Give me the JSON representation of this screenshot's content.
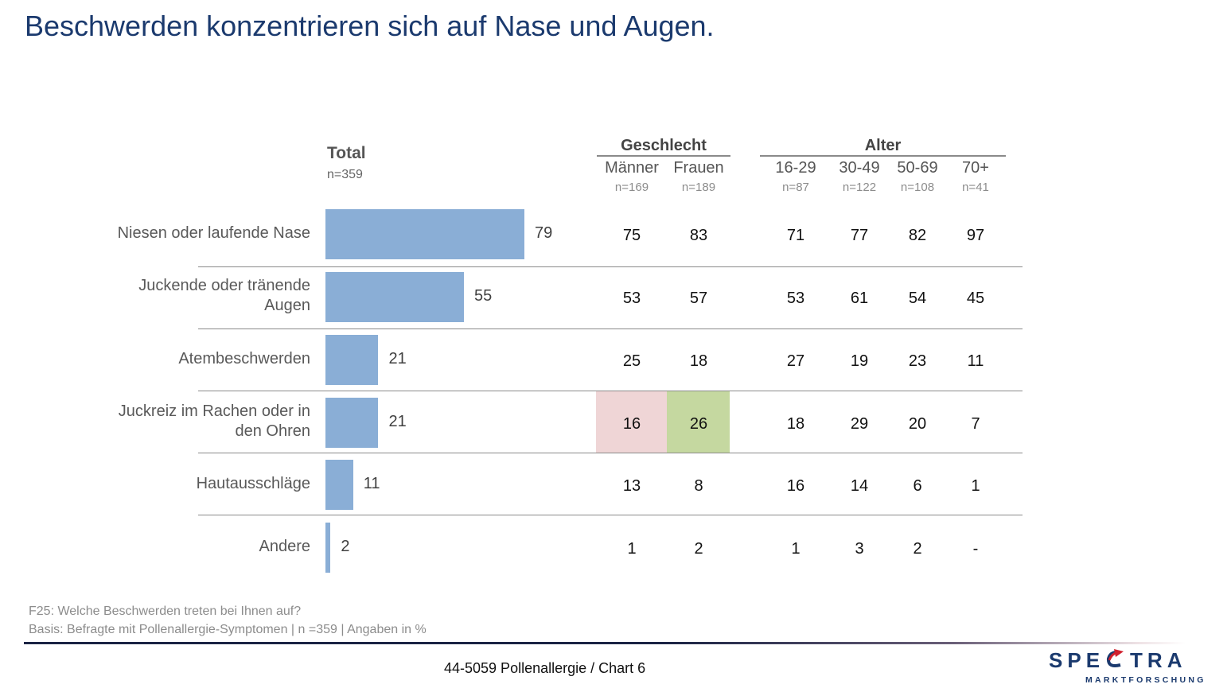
{
  "title": "Beschwerden konzentrieren sich auf Nase und Augen.",
  "header": {
    "total_label": "Total",
    "total_n": "n=359",
    "groups": [
      {
        "name": "Geschlecht",
        "columns": [
          {
            "label": "Männer",
            "n": "n=169"
          },
          {
            "label": "Frauen",
            "n": "n=189"
          }
        ]
      },
      {
        "name": "Alter",
        "columns": [
          {
            "label": "16-29",
            "n": "n=87"
          },
          {
            "label": "30-49",
            "n": "n=122"
          },
          {
            "label": "50-69",
            "n": "n=108"
          },
          {
            "label": "70+",
            "n": "n=41"
          }
        ]
      }
    ]
  },
  "colors": {
    "bar": "#8aaed6",
    "title": "#1b3a6e",
    "highlight_low": "#efd5d6",
    "highlight_high": "#c5d8a0"
  },
  "chart_data": {
    "type": "bar",
    "orientation": "horizontal",
    "title": "Beschwerden konzentrieren sich auf Nase und Augen.",
    "unit": "%",
    "xlim": [
      0,
      100
    ],
    "grid": false,
    "categories": [
      "Niesen oder laufende Nase",
      "Juckende oder tränende Augen",
      "Atembeschwerden",
      "Juckreiz im Rachen oder in den Ohren",
      "Hautausschläge",
      "Andere"
    ],
    "category_lines": [
      [
        "Niesen oder laufende Nase"
      ],
      [
        "Juckende oder tränende",
        "Augen"
      ],
      [
        "Atembeschwerden"
      ],
      [
        "Juckreiz im Rachen oder in",
        "den Ohren"
      ],
      [
        "Hautausschläge"
      ],
      [
        "Andere"
      ]
    ],
    "series": [
      {
        "name": "Total",
        "values": [
          79,
          55,
          21,
          21,
          11,
          2
        ]
      }
    ],
    "table": {
      "columns": [
        "Männer",
        "Frauen",
        "16-29",
        "30-49",
        "50-69",
        "70+"
      ],
      "rows": [
        [
          "75",
          "83",
          "71",
          "77",
          "82",
          "97"
        ],
        [
          "53",
          "57",
          "53",
          "61",
          "54",
          "45"
        ],
        [
          "25",
          "18",
          "27",
          "19",
          "23",
          "11"
        ],
        [
          "16",
          "26",
          "18",
          "29",
          "20",
          "7"
        ],
        [
          "13",
          "8",
          "16",
          "14",
          "6",
          "1"
        ],
        [
          "1",
          "2",
          "1",
          "3",
          "2",
          "-"
        ]
      ],
      "highlights": [
        {
          "row": 3,
          "col": 0,
          "type": "significantly-lower"
        },
        {
          "row": 3,
          "col": 1,
          "type": "significantly-higher"
        }
      ]
    }
  },
  "footer": {
    "question": "F25: Welche Beschwerden treten bei Ihnen auf?",
    "basis": "Basis: Befragte mit Pollenallergie-Symptomen | n =359 | Angaben in %",
    "chart_ref": "44-5059 Pollenallergie  /  Chart 6",
    "logo_word": "SPECTRA",
    "logo_sub": "MARKTFORSCHUNG"
  }
}
